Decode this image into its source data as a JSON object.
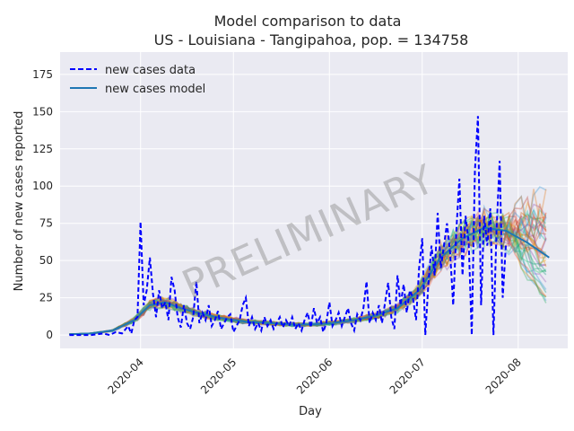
{
  "chart_data": {
    "type": "line",
    "title": "Model comparison to data",
    "subtitle": "US - Louisiana - Tangipahoa, pop. = 134758",
    "xlabel": "Day",
    "ylabel": "Number of new cases reported",
    "x_range": [
      "2020-03-06",
      "2020-08-17"
    ],
    "ylim": [
      -9,
      190
    ],
    "x_ticks": [
      "2020-04-01",
      "2020-05-01",
      "2020-06-01",
      "2020-07-01",
      "2020-08-01"
    ],
    "x_tick_labels": [
      "2020-04",
      "2020-05",
      "2020-06",
      "2020-07",
      "2020-08"
    ],
    "y_ticks": [
      0,
      25,
      50,
      75,
      100,
      125,
      150,
      175
    ],
    "grid": true,
    "legend_position": "top-left",
    "watermark": "PRELIMINARY",
    "series": [
      {
        "name": "new cases data",
        "style": "dashed",
        "color": "#0000ff",
        "points": [
          [
            "2020-03-09",
            0
          ],
          [
            "2020-03-12",
            0
          ],
          [
            "2020-03-16",
            0
          ],
          [
            "2020-03-20",
            1
          ],
          [
            "2020-03-22",
            0
          ],
          [
            "2020-03-24",
            2
          ],
          [
            "2020-03-26",
            1
          ],
          [
            "2020-03-28",
            6
          ],
          [
            "2020-03-29",
            1
          ],
          [
            "2020-03-30",
            10
          ],
          [
            "2020-03-31",
            12
          ],
          [
            "2020-04-01",
            76
          ],
          [
            "2020-04-02",
            20
          ],
          [
            "2020-04-03",
            30
          ],
          [
            "2020-04-04",
            52
          ],
          [
            "2020-04-05",
            28
          ],
          [
            "2020-04-06",
            12
          ],
          [
            "2020-04-07",
            30
          ],
          [
            "2020-04-08",
            18
          ],
          [
            "2020-04-09",
            22
          ],
          [
            "2020-04-10",
            10
          ],
          [
            "2020-04-11",
            39
          ],
          [
            "2020-04-12",
            30
          ],
          [
            "2020-04-13",
            12
          ],
          [
            "2020-04-14",
            5
          ],
          [
            "2020-04-15",
            20
          ],
          [
            "2020-04-16",
            8
          ],
          [
            "2020-04-17",
            4
          ],
          [
            "2020-04-18",
            12
          ],
          [
            "2020-04-19",
            36
          ],
          [
            "2020-04-20",
            8
          ],
          [
            "2020-04-21",
            15
          ],
          [
            "2020-04-22",
            10
          ],
          [
            "2020-04-23",
            20
          ],
          [
            "2020-04-24",
            6
          ],
          [
            "2020-04-25",
            10
          ],
          [
            "2020-04-26",
            16
          ],
          [
            "2020-04-27",
            4
          ],
          [
            "2020-04-28",
            8
          ],
          [
            "2020-04-29",
            12
          ],
          [
            "2020-04-30",
            14
          ],
          [
            "2020-05-01",
            2
          ],
          [
            "2020-05-02",
            6
          ],
          [
            "2020-05-03",
            10
          ],
          [
            "2020-05-04",
            20
          ],
          [
            "2020-05-05",
            25
          ],
          [
            "2020-05-06",
            6
          ],
          [
            "2020-05-07",
            12
          ],
          [
            "2020-05-08",
            4
          ],
          [
            "2020-05-09",
            8
          ],
          [
            "2020-05-10",
            3
          ],
          [
            "2020-05-11",
            12
          ],
          [
            "2020-05-12",
            6
          ],
          [
            "2020-05-13",
            10
          ],
          [
            "2020-05-14",
            4
          ],
          [
            "2020-05-15",
            8
          ],
          [
            "2020-05-16",
            12
          ],
          [
            "2020-05-17",
            5
          ],
          [
            "2020-05-18",
            10
          ],
          [
            "2020-05-19",
            6
          ],
          [
            "2020-05-20",
            12
          ],
          [
            "2020-05-21",
            4
          ],
          [
            "2020-05-22",
            8
          ],
          [
            "2020-05-23",
            3
          ],
          [
            "2020-05-24",
            10
          ],
          [
            "2020-05-25",
            15
          ],
          [
            "2020-05-26",
            5
          ],
          [
            "2020-05-27",
            18
          ],
          [
            "2020-05-28",
            8
          ],
          [
            "2020-05-29",
            12
          ],
          [
            "2020-05-30",
            2
          ],
          [
            "2020-05-31",
            8
          ],
          [
            "2020-06-01",
            22
          ],
          [
            "2020-06-02",
            6
          ],
          [
            "2020-06-03",
            10
          ],
          [
            "2020-06-04",
            15
          ],
          [
            "2020-06-05",
            6
          ],
          [
            "2020-06-06",
            12
          ],
          [
            "2020-06-07",
            18
          ],
          [
            "2020-06-08",
            8
          ],
          [
            "2020-06-09",
            3
          ],
          [
            "2020-06-10",
            14
          ],
          [
            "2020-06-11",
            10
          ],
          [
            "2020-06-12",
            18
          ],
          [
            "2020-06-13",
            36
          ],
          [
            "2020-06-14",
            8
          ],
          [
            "2020-06-15",
            15
          ],
          [
            "2020-06-16",
            10
          ],
          [
            "2020-06-17",
            20
          ],
          [
            "2020-06-18",
            8
          ],
          [
            "2020-06-19",
            22
          ],
          [
            "2020-06-20",
            35
          ],
          [
            "2020-06-21",
            12
          ],
          [
            "2020-06-22",
            4
          ],
          [
            "2020-06-23",
            40
          ],
          [
            "2020-06-24",
            20
          ],
          [
            "2020-06-25",
            34
          ],
          [
            "2020-06-26",
            15
          ],
          [
            "2020-06-27",
            30
          ],
          [
            "2020-06-28",
            25
          ],
          [
            "2020-06-29",
            10
          ],
          [
            "2020-06-30",
            45
          ],
          [
            "2020-07-01",
            65
          ],
          [
            "2020-07-02",
            0
          ],
          [
            "2020-07-03",
            35
          ],
          [
            "2020-07-04",
            60
          ],
          [
            "2020-07-05",
            40
          ],
          [
            "2020-07-06",
            82
          ],
          [
            "2020-07-07",
            45
          ],
          [
            "2020-07-08",
            60
          ],
          [
            "2020-07-09",
            75
          ],
          [
            "2020-07-10",
            55
          ],
          [
            "2020-07-11",
            20
          ],
          [
            "2020-07-12",
            70
          ],
          [
            "2020-07-13",
            105
          ],
          [
            "2020-07-14",
            40
          ],
          [
            "2020-07-15",
            80
          ],
          [
            "2020-07-16",
            62
          ],
          [
            "2020-07-17",
            0
          ],
          [
            "2020-07-18",
            110
          ],
          [
            "2020-07-19",
            147
          ],
          [
            "2020-07-20",
            20
          ],
          [
            "2020-07-21",
            80
          ],
          [
            "2020-07-22",
            60
          ],
          [
            "2020-07-23",
            85
          ],
          [
            "2020-07-24",
            0
          ],
          [
            "2020-07-25",
            70
          ],
          [
            "2020-07-26",
            117
          ],
          [
            "2020-07-27",
            25
          ],
          [
            "2020-07-28",
            60
          ]
        ]
      },
      {
        "name": "new cases model",
        "style": "solid",
        "color": "#1f77b4",
        "points": [
          [
            "2020-03-09",
            0.5
          ],
          [
            "2020-03-16",
            1
          ],
          [
            "2020-03-23",
            3
          ],
          [
            "2020-03-30",
            10
          ],
          [
            "2020-04-04",
            20
          ],
          [
            "2020-04-09",
            22
          ],
          [
            "2020-04-14",
            18
          ],
          [
            "2020-04-21",
            14
          ],
          [
            "2020-04-28",
            11
          ],
          [
            "2020-05-05",
            9
          ],
          [
            "2020-05-12",
            8
          ],
          [
            "2020-05-19",
            7
          ],
          [
            "2020-05-26",
            7
          ],
          [
            "2020-06-02",
            8
          ],
          [
            "2020-06-09",
            10
          ],
          [
            "2020-06-16",
            13
          ],
          [
            "2020-06-23",
            18
          ],
          [
            "2020-06-30",
            30
          ],
          [
            "2020-07-07",
            52
          ],
          [
            "2020-07-14",
            65
          ],
          [
            "2020-07-21",
            72
          ],
          [
            "2020-07-28",
            70
          ],
          [
            "2020-08-04",
            62
          ],
          [
            "2020-08-11",
            52
          ]
        ]
      }
    ]
  }
}
